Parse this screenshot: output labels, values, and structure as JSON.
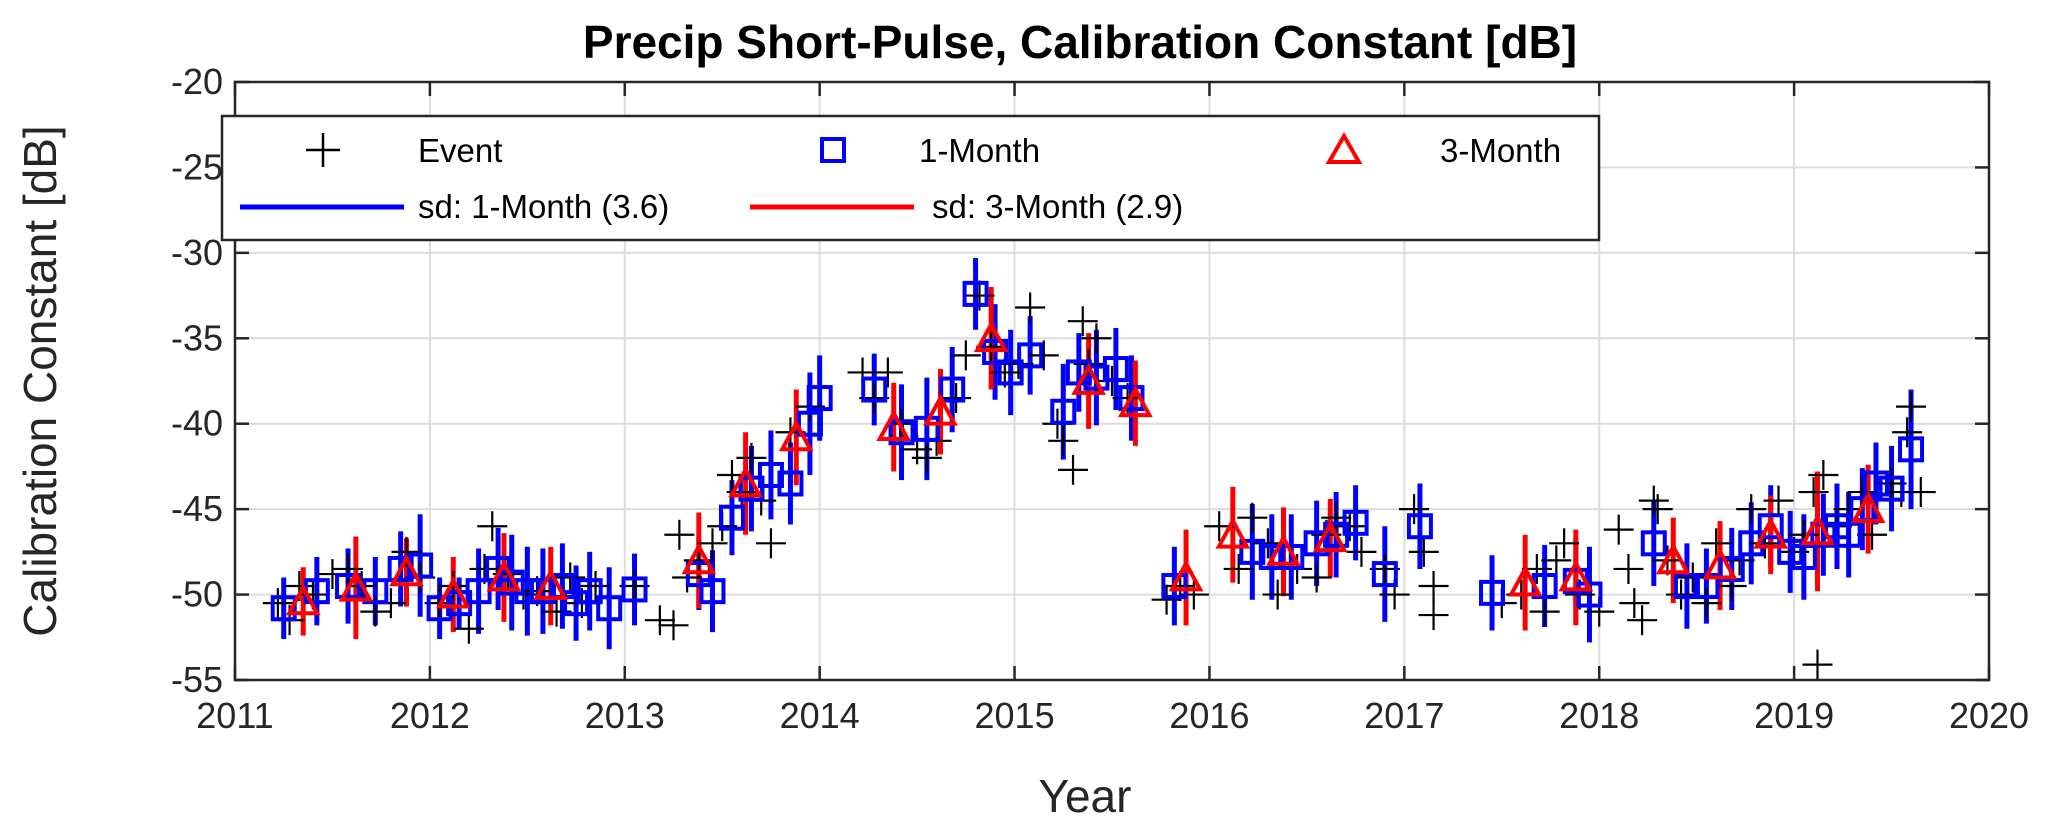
{
  "chart_data": {
    "type": "scatter",
    "title": "Precip Short-Pulse, Calibration Constant [dB]",
    "xlabel": "Year",
    "ylabel": "Calibration Constant [dB]",
    "xlim": [
      2011,
      2020
    ],
    "ylim": [
      -55,
      -20
    ],
    "xticks": [
      2011,
      2012,
      2013,
      2014,
      2015,
      2016,
      2017,
      2018,
      2019,
      2020
    ],
    "yticks": [
      -55,
      -50,
      -45,
      -40,
      -35,
      -30,
      -25,
      -20
    ],
    "grid": true,
    "legend_position": "top-left",
    "colors": {
      "event": "#000000",
      "one_month": "#0000ff",
      "three_month": "#ff0000"
    },
    "series": [
      {
        "name": "Event",
        "marker": "plus",
        "points": [
          [
            2011.22,
            -50.5
          ],
          [
            2011.28,
            -51.5
          ],
          [
            2011.33,
            -49.5
          ],
          [
            2011.4,
            -50.0
          ],
          [
            2011.5,
            -48.8
          ],
          [
            2011.58,
            -48.5
          ],
          [
            2011.65,
            -49.5
          ],
          [
            2011.72,
            -51.0
          ],
          [
            2011.8,
            -50.5
          ],
          [
            2011.88,
            -47.5
          ],
          [
            2011.95,
            -49.0
          ],
          [
            2012.05,
            -50.5
          ],
          [
            2012.12,
            -49.5
          ],
          [
            2012.2,
            -52.0
          ],
          [
            2012.28,
            -48.5
          ],
          [
            2012.32,
            -46.0
          ],
          [
            2012.4,
            -48.8
          ],
          [
            2012.48,
            -50.0
          ],
          [
            2012.55,
            -49.8
          ],
          [
            2012.65,
            -51.0
          ],
          [
            2012.72,
            -49.0
          ],
          [
            2012.78,
            -50.5
          ],
          [
            2012.85,
            -49.5
          ],
          [
            2013.05,
            -49.5
          ],
          [
            2013.18,
            -51.5
          ],
          [
            2013.25,
            -51.8
          ],
          [
            2013.28,
            -46.5
          ],
          [
            2013.32,
            -49.0
          ],
          [
            2013.38,
            -48.0
          ],
          [
            2013.45,
            -47.0
          ],
          [
            2013.5,
            -46.0
          ],
          [
            2013.55,
            -43.0
          ],
          [
            2013.6,
            -44.0
          ],
          [
            2013.65,
            -42.0
          ],
          [
            2013.7,
            -44.5
          ],
          [
            2013.75,
            -47.0
          ],
          [
            2013.85,
            -40.5
          ],
          [
            2013.95,
            -39.0
          ],
          [
            2014.22,
            -37.0
          ],
          [
            2014.28,
            -38.5
          ],
          [
            2014.35,
            -37.0
          ],
          [
            2014.42,
            -40.0
          ],
          [
            2014.5,
            -41.5
          ],
          [
            2014.55,
            -42.0
          ],
          [
            2014.6,
            -41.0
          ],
          [
            2014.7,
            -38.5
          ],
          [
            2014.75,
            -36.0
          ],
          [
            2014.82,
            -32.5
          ],
          [
            2014.88,
            -35.5
          ],
          [
            2014.95,
            -37.0
          ],
          [
            2015.02,
            -36.5
          ],
          [
            2015.08,
            -33.2
          ],
          [
            2015.15,
            -36.0
          ],
          [
            2015.22,
            -40.0
          ],
          [
            2015.25,
            -41.0
          ],
          [
            2015.3,
            -42.7
          ],
          [
            2015.35,
            -34.0
          ],
          [
            2015.38,
            -36.5
          ],
          [
            2015.42,
            -35.0
          ],
          [
            2015.5,
            -37.5
          ],
          [
            2015.58,
            -38.5
          ],
          [
            2015.78,
            -50.3
          ],
          [
            2015.85,
            -49.5
          ],
          [
            2015.92,
            -50.0
          ],
          [
            2016.05,
            -46.0
          ],
          [
            2016.15,
            -48.5
          ],
          [
            2016.22,
            -45.5
          ],
          [
            2016.3,
            -47.0
          ],
          [
            2016.35,
            -50.0
          ],
          [
            2016.45,
            -48.5
          ],
          [
            2016.55,
            -49.0
          ],
          [
            2016.6,
            -46.5
          ],
          [
            2016.65,
            -45.5
          ],
          [
            2016.72,
            -46.0
          ],
          [
            2016.78,
            -47.5
          ],
          [
            2016.9,
            -48.5
          ],
          [
            2016.95,
            -50.0
          ],
          [
            2017.05,
            -45.0
          ],
          [
            2017.1,
            -47.5
          ],
          [
            2017.15,
            -49.5
          ],
          [
            2017.15,
            -51.2
          ],
          [
            2017.5,
            -50.5
          ],
          [
            2017.6,
            -50.0
          ],
          [
            2017.68,
            -48.5
          ],
          [
            2017.72,
            -51.0
          ],
          [
            2017.78,
            -48.0
          ],
          [
            2017.82,
            -47.0
          ],
          [
            2017.9,
            -50.0
          ],
          [
            2018.0,
            -51.0
          ],
          [
            2018.1,
            -46.2
          ],
          [
            2018.15,
            -48.5
          ],
          [
            2018.18,
            -50.5
          ],
          [
            2018.22,
            -51.5
          ],
          [
            2018.28,
            -44.5
          ],
          [
            2018.3,
            -45.0
          ],
          [
            2018.35,
            -48.0
          ],
          [
            2018.42,
            -50.0
          ],
          [
            2018.48,
            -49.0
          ],
          [
            2018.55,
            -50.5
          ],
          [
            2018.6,
            -47.0
          ],
          [
            2018.68,
            -49.5
          ],
          [
            2018.72,
            -48.0
          ],
          [
            2018.78,
            -45.0
          ],
          [
            2018.85,
            -47.0
          ],
          [
            2018.92,
            -44.5
          ],
          [
            2019.0,
            -47.5
          ],
          [
            2019.05,
            -46.5
          ],
          [
            2019.1,
            -44.0
          ],
          [
            2019.12,
            -54.1
          ],
          [
            2019.15,
            -43.0
          ],
          [
            2019.22,
            -46.0
          ],
          [
            2019.28,
            -45.0
          ],
          [
            2019.35,
            -44.0
          ],
          [
            2019.4,
            -46.5
          ],
          [
            2019.5,
            -43.5
          ],
          [
            2019.55,
            -44.0
          ],
          [
            2019.58,
            -40.5
          ],
          [
            2019.6,
            -39.0
          ],
          [
            2019.65,
            -44.0
          ]
        ]
      },
      {
        "name": "1-Month",
        "marker": "square",
        "points": [
          [
            2011.25,
            -50.8
          ],
          [
            2011.42,
            -49.8
          ],
          [
            2011.58,
            -49.5
          ],
          [
            2011.72,
            -49.8
          ],
          [
            2011.85,
            -48.5
          ],
          [
            2011.95,
            -48.3
          ],
          [
            2012.05,
            -50.8
          ],
          [
            2012.15,
            -50.5
          ],
          [
            2012.25,
            -49.8
          ],
          [
            2012.35,
            -48.5
          ],
          [
            2012.42,
            -49.3
          ],
          [
            2012.5,
            -49.8
          ],
          [
            2012.58,
            -49.8
          ],
          [
            2012.68,
            -49.5
          ],
          [
            2012.75,
            -50.5
          ],
          [
            2012.82,
            -49.8
          ],
          [
            2012.92,
            -50.8
          ],
          [
            2013.05,
            -49.7
          ],
          [
            2013.38,
            -48.8
          ],
          [
            2013.45,
            -49.8
          ],
          [
            2013.55,
            -45.5
          ],
          [
            2013.65,
            -43.8
          ],
          [
            2013.75,
            -43.0
          ],
          [
            2013.85,
            -43.5
          ],
          [
            2013.95,
            -40.0
          ],
          [
            2014.0,
            -38.5
          ],
          [
            2014.28,
            -38.0
          ],
          [
            2014.42,
            -40.5
          ],
          [
            2014.55,
            -40.3
          ],
          [
            2014.68,
            -38.0
          ],
          [
            2014.8,
            -32.4
          ],
          [
            2014.9,
            -35.8
          ],
          [
            2014.98,
            -37.0
          ],
          [
            2015.08,
            -36.0
          ],
          [
            2015.25,
            -39.3
          ],
          [
            2015.33,
            -37.0
          ],
          [
            2015.42,
            -37.3
          ],
          [
            2015.52,
            -36.8
          ],
          [
            2015.6,
            -38.5
          ],
          [
            2015.82,
            -49.5
          ],
          [
            2016.22,
            -47.5
          ],
          [
            2016.32,
            -47.8
          ],
          [
            2016.42,
            -47.8
          ],
          [
            2016.55,
            -47.0
          ],
          [
            2016.65,
            -46.5
          ],
          [
            2016.75,
            -45.8
          ],
          [
            2016.9,
            -48.8
          ],
          [
            2017.08,
            -46.0
          ],
          [
            2017.45,
            -49.9
          ],
          [
            2017.72,
            -49.5
          ],
          [
            2017.88,
            -49.2
          ],
          [
            2017.95,
            -50.0
          ],
          [
            2018.28,
            -47.0
          ],
          [
            2018.45,
            -49.5
          ],
          [
            2018.55,
            -49.5
          ],
          [
            2018.68,
            -48.5
          ],
          [
            2018.78,
            -47.0
          ],
          [
            2018.88,
            -46.0
          ],
          [
            2018.98,
            -47.5
          ],
          [
            2019.05,
            -47.8
          ],
          [
            2019.15,
            -46.5
          ],
          [
            2019.22,
            -46.0
          ],
          [
            2019.28,
            -46.5
          ],
          [
            2019.35,
            -45.0
          ],
          [
            2019.42,
            -43.5
          ],
          [
            2019.5,
            -43.8
          ],
          [
            2019.6,
            -41.5
          ]
        ],
        "sd": [
          1.8,
          2.0,
          2.2,
          2.0,
          2.2,
          3.0,
          1.8,
          1.5,
          2.5,
          2.4,
          2.8,
          2.6,
          2.5,
          2.5,
          2.2,
          2.3,
          2.4,
          2.1,
          2.1,
          2.4,
          2.2,
          2.5,
          2.6,
          2.4,
          3.0,
          2.5,
          2.1,
          2.8,
          3.0,
          2.5,
          2.1,
          2.8,
          2.5,
          2.3,
          2.8,
          2.3,
          2.8,
          2.4,
          2.5,
          2.3,
          2.8,
          2.5,
          2.5,
          2.5,
          2.5,
          2.2,
          2.8,
          2.5,
          2.2,
          2.4,
          2.5,
          2.8,
          2.5,
          2.5,
          2.2,
          2.4,
          2.4,
          2.4,
          2.4,
          2.5,
          2.4,
          2.5,
          2.5,
          2.4,
          2.4,
          2.5,
          3.5
        ]
      },
      {
        "name": "3-Month",
        "marker": "triangle",
        "points": [
          [
            2011.35,
            -50.4
          ],
          [
            2011.62,
            -49.6
          ],
          [
            2011.88,
            -48.7
          ],
          [
            2012.12,
            -50.0
          ],
          [
            2012.38,
            -49.0
          ],
          [
            2012.62,
            -49.5
          ],
          [
            2013.38,
            -48.0
          ],
          [
            2013.62,
            -43.5
          ],
          [
            2013.88,
            -40.8
          ],
          [
            2014.38,
            -40.2
          ],
          [
            2014.62,
            -39.3
          ],
          [
            2014.88,
            -35.0
          ],
          [
            2015.38,
            -37.5
          ],
          [
            2015.62,
            -38.8
          ],
          [
            2015.88,
            -49.0
          ],
          [
            2016.12,
            -46.5
          ],
          [
            2016.38,
            -47.5
          ],
          [
            2016.62,
            -46.7
          ],
          [
            2017.62,
            -49.3
          ],
          [
            2017.88,
            -49.0
          ],
          [
            2018.38,
            -48.0
          ],
          [
            2018.62,
            -48.3
          ],
          [
            2018.88,
            -46.5
          ],
          [
            2019.12,
            -46.3
          ],
          [
            2019.38,
            -45.0
          ]
        ],
        "sd": [
          2.0,
          3.0,
          2.0,
          2.2,
          2.6,
          2.3,
          2.8,
          3.0,
          2.8,
          2.6,
          2.5,
          3.0,
          2.8,
          2.5,
          2.8,
          2.8,
          2.6,
          2.3,
          2.8,
          2.8,
          2.5,
          2.6,
          2.3,
          3.5,
          2.6
        ]
      }
    ],
    "legend": {
      "event": "Event",
      "one_month": "1-Month",
      "three_month": "3-Month",
      "sd_one_month": "sd: 1-Month (3.6)",
      "sd_three_month": "sd: 3-Month (2.9)"
    }
  }
}
